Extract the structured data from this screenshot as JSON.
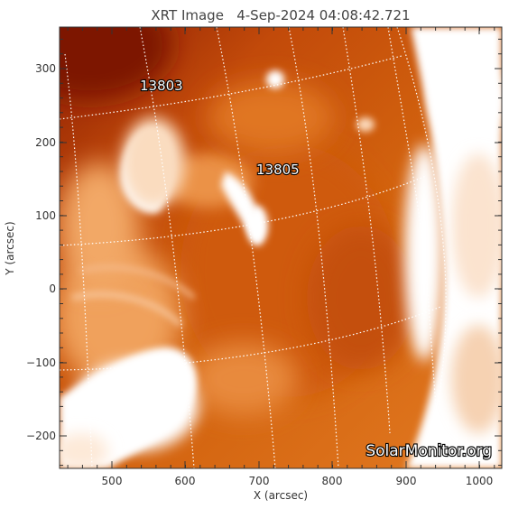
{
  "title": "XRT Image   4-Sep-2024 04:08:42.721",
  "xlabel": "X (arcsec)",
  "ylabel": "Y (arcsec)",
  "x_ticks": [
    "500",
    "600",
    "700",
    "800",
    "900",
    "1000"
  ],
  "y_ticks": [
    "300",
    "200",
    "100",
    "0",
    "−100",
    "−200"
  ],
  "regions": [
    "13803",
    "13805"
  ],
  "watermark": "SolarMonitor.org",
  "colors": {
    "disk_dark": "#8e1f03",
    "disk_mid": "#d0600e",
    "disk_light": "#f39a47",
    "bright_loops": "#ffffff",
    "grid": "#ffffff"
  }
}
